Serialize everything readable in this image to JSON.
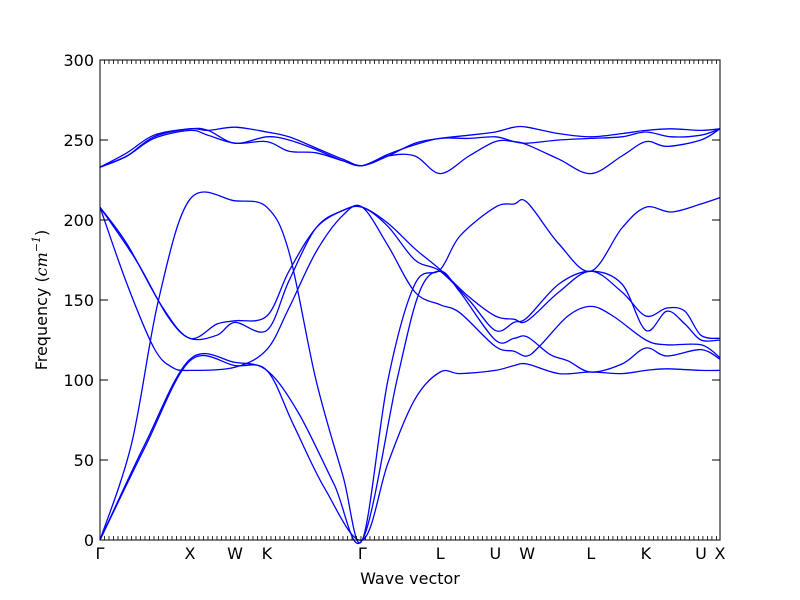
{
  "chart_data": {
    "type": "line",
    "title": "",
    "xlabel": "Wave vector",
    "ylabel": "Frequency (cm⁻¹)",
    "ylabel_main": "Frequency (",
    "ylabel_unit": "cm",
    "ylabel_exp": "−1",
    "ylabel_close": ")",
    "ylim": [
      0,
      300
    ],
    "yticks": [
      0,
      50,
      100,
      150,
      200,
      250,
      300
    ],
    "xlim": [
      0,
      6.89
    ],
    "high_symmetry_points": [
      {
        "label": "Γ",
        "x": 0
      },
      {
        "label": "X",
        "x": 1.0
      },
      {
        "label": "W",
        "x": 1.5
      },
      {
        "label": "K",
        "x": 1.854
      },
      {
        "label": "Γ",
        "x": 2.915
      },
      {
        "label": "L",
        "x": 3.781
      },
      {
        "label": "U",
        "x": 4.393
      },
      {
        "label": "W",
        "x": 4.747
      },
      {
        "label": "L",
        "x": 5.454
      },
      {
        "label": "K",
        "x": 6.066
      },
      {
        "label": "U",
        "x": 6.678
      },
      {
        "label": "X",
        "x": 6.89
      }
    ],
    "line_color": "#0000ff",
    "grid": false,
    "legend": "none",
    "series": [
      {
        "points": [
          [
            0,
            0
          ],
          [
            0.5,
            58
          ],
          [
            1.0,
            112
          ],
          [
            1.5,
            109
          ],
          [
            1.854,
            106
          ],
          [
            2.15,
            72
          ],
          [
            2.5,
            32
          ],
          [
            2.915,
            0
          ],
          [
            3.2,
            48
          ],
          [
            3.5,
            88
          ],
          [
            3.781,
            105
          ],
          [
            4.0,
            104
          ],
          [
            4.393,
            106
          ],
          [
            4.6,
            109
          ],
          [
            4.747,
            110
          ],
          [
            5.1,
            104
          ],
          [
            5.454,
            105
          ],
          [
            5.8,
            104
          ],
          [
            6.066,
            106
          ],
          [
            6.3,
            107
          ],
          [
            6.678,
            106
          ],
          [
            6.89,
            106
          ]
        ]
      },
      {
        "points": [
          [
            0,
            0
          ],
          [
            0.5,
            60
          ],
          [
            1.0,
            113
          ],
          [
            1.5,
            111
          ],
          [
            1.854,
            106
          ],
          [
            2.2,
            80
          ],
          [
            2.6,
            35
          ],
          [
            2.915,
            0
          ],
          [
            3.3,
            100
          ],
          [
            3.55,
            155
          ],
          [
            3.781,
            168
          ],
          [
            4.0,
            155
          ],
          [
            4.393,
            125
          ],
          [
            4.6,
            126
          ],
          [
            4.747,
            127
          ],
          [
            5.0,
            116
          ],
          [
            5.2,
            112
          ],
          [
            5.454,
            105
          ],
          [
            5.8,
            110
          ],
          [
            6.066,
            120
          ],
          [
            6.3,
            115
          ],
          [
            6.678,
            119
          ],
          [
            6.89,
            113
          ]
        ]
      },
      {
        "points": [
          [
            0,
            0
          ],
          [
            0.35,
            60
          ],
          [
            0.65,
            150
          ],
          [
            1.0,
            213
          ],
          [
            1.5,
            212
          ],
          [
            1.854,
            208
          ],
          [
            2.1,
            180
          ],
          [
            2.4,
            100
          ],
          [
            2.7,
            40
          ],
          [
            2.915,
            0
          ],
          [
            3.2,
            100
          ],
          [
            3.5,
            160
          ],
          [
            3.781,
            169
          ],
          [
            4.0,
            190
          ],
          [
            4.393,
            208
          ],
          [
            4.6,
            210
          ],
          [
            4.747,
            211
          ],
          [
            5.1,
            185
          ],
          [
            5.454,
            168
          ],
          [
            5.8,
            195
          ],
          [
            6.066,
            208
          ],
          [
            6.35,
            205
          ],
          [
            6.678,
            210
          ],
          [
            6.89,
            214
          ]
        ]
      },
      {
        "points": [
          [
            0,
            208
          ],
          [
            0.3,
            185
          ],
          [
            0.7,
            145
          ],
          [
            1.0,
            126
          ],
          [
            1.3,
            135
          ],
          [
            1.5,
            137
          ],
          [
            1.854,
            140
          ],
          [
            2.1,
            168
          ],
          [
            2.4,
            195
          ],
          [
            2.7,
            206
          ],
          [
            2.915,
            208
          ],
          [
            3.2,
            198
          ],
          [
            3.5,
            182
          ],
          [
            3.781,
            169
          ],
          [
            4.1,
            152
          ],
          [
            4.393,
            140
          ],
          [
            4.6,
            138
          ],
          [
            4.747,
            137
          ],
          [
            5.1,
            155
          ],
          [
            5.454,
            168
          ],
          [
            5.8,
            155
          ],
          [
            6.066,
            140
          ],
          [
            6.3,
            145
          ],
          [
            6.5,
            143
          ],
          [
            6.678,
            128
          ],
          [
            6.89,
            126
          ]
        ]
      },
      {
        "points": [
          [
            0,
            208
          ],
          [
            0.4,
            175
          ],
          [
            0.75,
            140
          ],
          [
            1.0,
            126
          ],
          [
            1.3,
            128
          ],
          [
            1.5,
            136
          ],
          [
            1.854,
            131
          ],
          [
            2.1,
            162
          ],
          [
            2.4,
            195
          ],
          [
            2.7,
            206
          ],
          [
            2.915,
            208
          ],
          [
            3.2,
            196
          ],
          [
            3.5,
            175
          ],
          [
            3.781,
            168
          ],
          [
            4.1,
            150
          ],
          [
            4.393,
            131
          ],
          [
            4.6,
            136
          ],
          [
            4.747,
            139
          ],
          [
            5.1,
            160
          ],
          [
            5.454,
            168
          ],
          [
            5.8,
            160
          ],
          [
            6.066,
            131
          ],
          [
            6.3,
            143
          ],
          [
            6.5,
            135
          ],
          [
            6.678,
            125
          ],
          [
            6.89,
            125
          ]
        ]
      },
      {
        "points": [
          [
            0,
            208
          ],
          [
            0.3,
            160
          ],
          [
            0.6,
            120
          ],
          [
            0.8,
            108
          ],
          [
            1.0,
            106
          ],
          [
            1.5,
            108
          ],
          [
            1.854,
            119
          ],
          [
            2.1,
            145
          ],
          [
            2.4,
            180
          ],
          [
            2.7,
            203
          ],
          [
            2.915,
            208
          ],
          [
            3.2,
            184
          ],
          [
            3.5,
            155
          ],
          [
            3.781,
            147
          ],
          [
            4.0,
            142
          ],
          [
            4.393,
            121
          ],
          [
            4.6,
            118
          ],
          [
            4.747,
            115
          ],
          [
            4.9,
            122
          ],
          [
            5.2,
            140
          ],
          [
            5.454,
            146
          ],
          [
            5.7,
            140
          ],
          [
            6.066,
            125
          ],
          [
            6.3,
            122
          ],
          [
            6.678,
            122
          ],
          [
            6.89,
            114
          ]
        ]
      },
      {
        "points": [
          [
            0,
            233
          ],
          [
            0.3,
            240
          ],
          [
            0.6,
            252
          ],
          [
            1.0,
            257
          ],
          [
            1.2,
            256
          ],
          [
            1.5,
            258
          ],
          [
            1.854,
            255
          ],
          [
            2.1,
            252
          ],
          [
            2.4,
            245
          ],
          [
            2.7,
            238
          ],
          [
            2.915,
            234
          ],
          [
            3.2,
            240
          ],
          [
            3.5,
            248
          ],
          [
            3.781,
            251
          ],
          [
            4.1,
            253
          ],
          [
            4.393,
            255
          ],
          [
            4.6,
            258
          ],
          [
            4.747,
            258
          ],
          [
            5.1,
            254
          ],
          [
            5.454,
            252
          ],
          [
            5.8,
            254
          ],
          [
            6.066,
            256
          ],
          [
            6.35,
            257
          ],
          [
            6.678,
            256
          ],
          [
            6.89,
            257
          ]
        ]
      },
      {
        "points": [
          [
            0,
            233
          ],
          [
            0.3,
            242
          ],
          [
            0.6,
            253
          ],
          [
            1.0,
            257
          ],
          [
            1.2,
            256
          ],
          [
            1.5,
            248
          ],
          [
            1.854,
            252
          ],
          [
            2.1,
            250
          ],
          [
            2.4,
            244
          ],
          [
            2.7,
            237
          ],
          [
            2.915,
            234
          ],
          [
            3.2,
            241
          ],
          [
            3.5,
            247
          ],
          [
            3.781,
            251
          ],
          [
            4.1,
            251
          ],
          [
            4.393,
            252
          ],
          [
            4.6,
            249
          ],
          [
            4.747,
            248
          ],
          [
            5.1,
            250
          ],
          [
            5.454,
            251
          ],
          [
            5.8,
            252
          ],
          [
            6.066,
            255
          ],
          [
            6.35,
            252
          ],
          [
            6.678,
            253
          ],
          [
            6.89,
            257
          ]
        ]
      },
      {
        "points": [
          [
            0,
            233
          ],
          [
            0.3,
            240
          ],
          [
            0.6,
            251
          ],
          [
            1.0,
            256
          ],
          [
            1.2,
            253
          ],
          [
            1.5,
            248
          ],
          [
            1.854,
            249
          ],
          [
            2.1,
            243
          ],
          [
            2.4,
            242
          ],
          [
            2.7,
            237
          ],
          [
            2.915,
            234
          ],
          [
            3.2,
            240
          ],
          [
            3.5,
            240
          ],
          [
            3.781,
            229
          ],
          [
            4.1,
            240
          ],
          [
            4.393,
            249
          ],
          [
            4.6,
            249
          ],
          [
            4.747,
            247
          ],
          [
            5.1,
            238
          ],
          [
            5.454,
            229
          ],
          [
            5.8,
            240
          ],
          [
            6.066,
            249
          ],
          [
            6.3,
            246
          ],
          [
            6.678,
            250
          ],
          [
            6.89,
            257
          ]
        ]
      }
    ]
  }
}
